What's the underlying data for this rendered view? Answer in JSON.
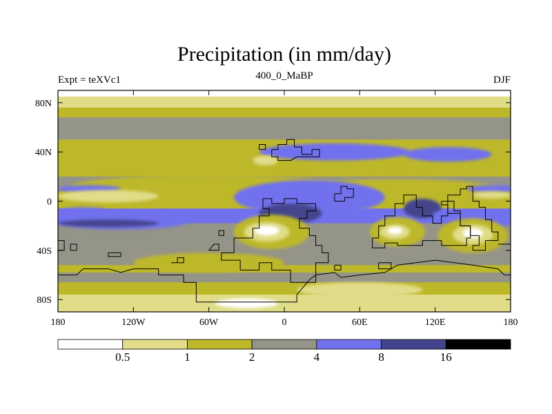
{
  "chart_data": {
    "type": "heatmap",
    "title": "Precipitation (in mm/day)",
    "left_string": "Expt = teXVc1",
    "center_string": "400_0_MaBP",
    "right_string": "DJF",
    "xlim": [
      -180,
      180
    ],
    "ylim": [
      -90,
      90
    ],
    "x_ticks": [
      {
        "value": -180,
        "label": "180"
      },
      {
        "value": -120,
        "label": "120W"
      },
      {
        "value": -60,
        "label": "60W"
      },
      {
        "value": 0,
        "label": "0"
      },
      {
        "value": 60,
        "label": "60E"
      },
      {
        "value": 120,
        "label": "120E"
      },
      {
        "value": 180,
        "label": "180"
      }
    ],
    "y_ticks": [
      {
        "value": 80,
        "label": "80N"
      },
      {
        "value": 40,
        "label": "40N"
      },
      {
        "value": 0,
        "label": "0"
      },
      {
        "value": -40,
        "label": "40S"
      },
      {
        "value": -80,
        "label": "80S"
      }
    ],
    "colorbar": {
      "levels": [
        0.5,
        1,
        2,
        4,
        8,
        16
      ],
      "labels": [
        "0.5",
        "1",
        "2",
        "4",
        "8",
        "16"
      ],
      "colors": [
        "#ffffff",
        "#e0dc88",
        "#bdb829",
        "#959488",
        "#7171ee",
        "#44448e",
        "#000000"
      ]
    },
    "zonal_bands": [
      {
        "lat_from": 90,
        "lat_to": 85,
        "class": 0
      },
      {
        "lat_from": 85,
        "lat_to": 76,
        "class": 1
      },
      {
        "lat_from": 76,
        "lat_to": 68,
        "class": 2
      },
      {
        "lat_from": 68,
        "lat_to": 50,
        "class": 3
      },
      {
        "lat_from": 50,
        "lat_to": 20,
        "class": 2
      },
      {
        "lat_from": 20,
        "lat_to": 8,
        "class": 3
      },
      {
        "lat_from": 8,
        "lat_to": -6,
        "class": 2
      },
      {
        "lat_from": -6,
        "lat_to": -18,
        "class": 4
      },
      {
        "lat_from": -18,
        "lat_to": -28,
        "class": 3
      },
      {
        "lat_from": -28,
        "lat_to": -52,
        "class": 3
      },
      {
        "lat_from": -52,
        "lat_to": -58,
        "class": 2
      },
      {
        "lat_from": -58,
        "lat_to": -66,
        "class": 3
      },
      {
        "lat_from": -66,
        "lat_to": -76,
        "class": 2
      },
      {
        "lat_from": -76,
        "lat_to": -84,
        "class": 1
      },
      {
        "lat_from": -84,
        "lat_to": -90,
        "class": 1
      }
    ],
    "regions": [
      {
        "lon": -60,
        "lat": 12,
        "rlon": 110,
        "rlat": 9,
        "class": 2
      },
      {
        "lon": 90,
        "lat": 10,
        "rlon": 80,
        "rlat": 8,
        "class": 2
      },
      {
        "lon": 40,
        "lat": 40,
        "rlon": 60,
        "rlat": 7,
        "class": 4
      },
      {
        "lon": 130,
        "lat": 38,
        "rlon": 35,
        "rlat": 6,
        "class": 4
      },
      {
        "lon": -15,
        "lat": 33,
        "rlon": 10,
        "rlat": 4,
        "class": 1
      },
      {
        "lon": -155,
        "lat": 10,
        "rlon": 25,
        "rlat": 3,
        "class": 4
      },
      {
        "lon": 165,
        "lat": 10,
        "rlon": 20,
        "rlat": 3,
        "class": 4
      },
      {
        "lon": -140,
        "lat": 4,
        "rlon": 40,
        "rlat": 5,
        "class": 1
      },
      {
        "lon": 165,
        "lat": 5,
        "rlon": 15,
        "rlat": 3,
        "class": 1
      },
      {
        "lon": 20,
        "lat": 3,
        "rlon": 60,
        "rlat": 14,
        "class": 4
      },
      {
        "lon": 5,
        "lat": -10,
        "rlon": 25,
        "rlat": 8,
        "class": 5
      },
      {
        "lon": 110,
        "lat": -6,
        "rlon": 15,
        "rlat": 8,
        "class": 5
      },
      {
        "lon": 130,
        "lat": -12,
        "rlon": 12,
        "rlat": 5,
        "class": 4
      },
      {
        "lon": -130,
        "lat": -16,
        "rlon": 55,
        "rlat": 7,
        "class": 4
      },
      {
        "lon": -140,
        "lat": -18,
        "rlon": 40,
        "rlat": 3,
        "class": 5
      },
      {
        "lon": -160,
        "lat": -8,
        "rlon": 20,
        "rlat": 3,
        "class": 4
      },
      {
        "lon": 170,
        "lat": -18,
        "rlon": 10,
        "rlat": 3,
        "class": 4
      },
      {
        "lon": -10,
        "lat": -25,
        "rlon": 30,
        "rlat": 14,
        "class": 2
      },
      {
        "lon": -14,
        "lat": -25,
        "rlon": 18,
        "rlat": 8,
        "class": 1
      },
      {
        "lon": -14,
        "lat": -24,
        "rlon": 10,
        "rlat": 4,
        "class": 0
      },
      {
        "lon": 90,
        "lat": -25,
        "rlon": 22,
        "rlat": 12,
        "class": 2
      },
      {
        "lon": 88,
        "lat": -25,
        "rlon": 12,
        "rlat": 6,
        "class": 1
      },
      {
        "lon": 88,
        "lat": -24,
        "rlon": 6,
        "rlat": 3,
        "class": 0
      },
      {
        "lon": 150,
        "lat": -28,
        "rlon": 28,
        "rlat": 14,
        "class": 2
      },
      {
        "lon": 150,
        "lat": -27,
        "rlon": 16,
        "rlat": 8,
        "class": 1
      },
      {
        "lon": 150,
        "lat": -26,
        "rlon": 8,
        "rlat": 4,
        "class": 0
      },
      {
        "lon": -60,
        "lat": -50,
        "rlon": 60,
        "rlat": 8,
        "class": 2
      },
      {
        "lon": 60,
        "lat": -72,
        "rlon": 50,
        "rlat": 6,
        "class": 1
      },
      {
        "lon": -30,
        "lat": -83,
        "rlon": 25,
        "rlat": 4,
        "class": 0
      }
    ],
    "coastlines": [
      [
        [
          -10,
          42
        ],
        [
          -5,
          42
        ],
        [
          -5,
          46
        ],
        [
          2,
          46
        ],
        [
          2,
          50
        ],
        [
          8,
          50
        ],
        [
          8,
          44
        ],
        [
          14,
          44
        ],
        [
          14,
          38
        ],
        [
          22,
          38
        ],
        [
          22,
          42
        ],
        [
          28,
          42
        ],
        [
          28,
          36
        ],
        [
          18,
          36
        ],
        [
          10,
          36
        ],
        [
          5,
          33
        ],
        [
          -5,
          33
        ],
        [
          -5,
          36
        ],
        [
          -10,
          36
        ],
        [
          -10,
          42
        ]
      ],
      [
        [
          -17,
          2
        ],
        [
          -17,
          -6
        ],
        [
          -12,
          -6
        ],
        [
          -12,
          -12
        ],
        [
          -20,
          -12
        ],
        [
          -20,
          -22
        ],
        [
          -25,
          -22
        ],
        [
          -25,
          -30
        ],
        [
          -40,
          -30
        ],
        [
          -40,
          -42
        ],
        [
          -50,
          -42
        ],
        [
          -50,
          -48
        ],
        [
          -35,
          -48
        ],
        [
          -35,
          -56
        ],
        [
          -20,
          -56
        ],
        [
          -20,
          -50
        ],
        [
          -10,
          -50
        ],
        [
          -10,
          -56
        ],
        [
          5,
          -56
        ],
        [
          5,
          -66
        ],
        [
          25,
          -66
        ],
        [
          25,
          -50
        ],
        [
          35,
          -50
        ],
        [
          35,
          -42
        ],
        [
          30,
          -42
        ],
        [
          30,
          -36
        ],
        [
          25,
          -36
        ],
        [
          25,
          -28
        ],
        [
          20,
          -28
        ],
        [
          20,
          -22
        ],
        [
          12,
          -22
        ],
        [
          12,
          -14
        ],
        [
          18,
          -14
        ],
        [
          18,
          -8
        ],
        [
          25,
          -8
        ],
        [
          25,
          -2
        ],
        [
          15,
          -2
        ],
        [
          10,
          -2
        ],
        [
          10,
          2
        ],
        [
          0,
          2
        ],
        [
          0,
          -2
        ],
        [
          -10,
          -2
        ],
        [
          -10,
          2
        ],
        [
          -17,
          2
        ]
      ],
      [
        [
          -120,
          -55
        ],
        [
          -100,
          -55
        ],
        [
          -100,
          -60
        ],
        [
          -80,
          -60
        ],
        [
          -80,
          -66
        ],
        [
          -70,
          -66
        ],
        [
          -70,
          -82
        ],
        [
          -20,
          -82
        ],
        [
          -20,
          -82
        ],
        [
          10,
          -82
        ],
        [
          10,
          -76
        ],
        [
          15,
          -70
        ],
        [
          20,
          -64
        ],
        [
          25,
          -60
        ],
        [
          40,
          -58
        ],
        [
          45,
          -62
        ],
        [
          60,
          -60
        ],
        [
          80,
          -58
        ],
        [
          90,
          -52
        ],
        [
          120,
          -48
        ],
        [
          150,
          -52
        ],
        [
          170,
          -55
        ],
        [
          175,
          -60
        ],
        [
          180,
          -60
        ]
      ],
      [
        [
          -180,
          -60
        ],
        [
          -165,
          -60
        ],
        [
          -160,
          -55
        ],
        [
          -140,
          -55
        ],
        [
          -130,
          -58
        ],
        [
          -120,
          -55
        ]
      ],
      [
        [
          40,
          6
        ],
        [
          45,
          6
        ],
        [
          45,
          12
        ],
        [
          50,
          12
        ],
        [
          50,
          10
        ],
        [
          55,
          10
        ],
        [
          55,
          3
        ],
        [
          48,
          3
        ],
        [
          48,
          0
        ],
        [
          40,
          0
        ],
        [
          40,
          6
        ]
      ],
      [
        [
          70,
          -35
        ],
        [
          70,
          -30
        ],
        [
          75,
          -30
        ],
        [
          75,
          -20
        ],
        [
          80,
          -20
        ],
        [
          80,
          -12
        ],
        [
          88,
          -12
        ],
        [
          88,
          -2
        ],
        [
          95,
          -2
        ],
        [
          95,
          5
        ],
        [
          105,
          5
        ],
        [
          105,
          -5
        ],
        [
          110,
          -5
        ],
        [
          110,
          -12
        ],
        [
          118,
          -12
        ],
        [
          118,
          -18
        ],
        [
          125,
          -18
        ],
        [
          125,
          -12
        ],
        [
          130,
          -12
        ],
        [
          130,
          0
        ],
        [
          135,
          0
        ],
        [
          135,
          -8
        ],
        [
          140,
          -8
        ],
        [
          140,
          -20
        ],
        [
          148,
          -20
        ],
        [
          148,
          -30
        ],
        [
          145,
          -30
        ],
        [
          145,
          -36
        ],
        [
          125,
          -36
        ],
        [
          125,
          -32
        ],
        [
          110,
          -32
        ],
        [
          110,
          -36
        ],
        [
          90,
          -36
        ],
        [
          90,
          -34
        ],
        [
          80,
          -34
        ],
        [
          80,
          -38
        ],
        [
          70,
          -38
        ],
        [
          70,
          -35
        ]
      ],
      [
        [
          125,
          0
        ],
        [
          130,
          0
        ],
        [
          130,
          5
        ],
        [
          140,
          5
        ],
        [
          140,
          10
        ],
        [
          145,
          10
        ],
        [
          145,
          12
        ],
        [
          150,
          12
        ],
        [
          150,
          0
        ],
        [
          155,
          0
        ],
        [
          155,
          -5
        ],
        [
          160,
          -5
        ],
        [
          160,
          -15
        ],
        [
          165,
          -15
        ],
        [
          165,
          -25
        ],
        [
          170,
          -25
        ],
        [
          170,
          -32
        ],
        [
          160,
          -32
        ],
        [
          160,
          -40
        ],
        [
          150,
          -40
        ],
        [
          150,
          -36
        ],
        [
          155,
          -36
        ],
        [
          155,
          -28
        ],
        [
          148,
          -28
        ],
        [
          148,
          -20
        ],
        [
          140,
          -20
        ],
        [
          140,
          -10
        ],
        [
          130,
          -10
        ],
        [
          130,
          -3
        ],
        [
          125,
          -3
        ],
        [
          125,
          0
        ]
      ],
      [
        [
          -170,
          -35
        ],
        [
          -165,
          -35
        ],
        [
          -165,
          -40
        ],
        [
          -170,
          -40
        ],
        [
          -170,
          -35
        ]
      ],
      [
        [
          -140,
          -42
        ],
        [
          -130,
          -42
        ],
        [
          -130,
          -45
        ],
        [
          -140,
          -45
        ],
        [
          -140,
          -42
        ]
      ],
      [
        [
          -90,
          -50
        ],
        [
          -85,
          -50
        ],
        [
          -85,
          -46
        ],
        [
          -80,
          -46
        ],
        [
          -80,
          -50
        ],
        [
          -90,
          -50
        ]
      ],
      [
        [
          -52,
          -28
        ],
        [
          -48,
          -28
        ],
        [
          -48,
          -24
        ],
        [
          -52,
          -24
        ],
        [
          -52,
          -28
        ]
      ],
      [
        [
          -60,
          -40
        ],
        [
          -52,
          -40
        ],
        [
          -52,
          -35
        ],
        [
          -56,
          -35
        ],
        [
          -60,
          -40
        ]
      ],
      [
        [
          40,
          -52
        ],
        [
          45,
          -52
        ],
        [
          45,
          -56
        ],
        [
          40,
          -56
        ],
        [
          40,
          -52
        ]
      ],
      [
        [
          75,
          -50
        ],
        [
          85,
          -50
        ],
        [
          85,
          -55
        ],
        [
          75,
          -55
        ],
        [
          75,
          -50
        ]
      ],
      [
        [
          -180,
          -32
        ],
        [
          -175,
          -32
        ],
        [
          -175,
          -40
        ],
        [
          -180,
          -40
        ]
      ],
      [
        [
          170,
          -35
        ],
        [
          180,
          -35
        ]
      ],
      [
        [
          -20,
          42
        ],
        [
          -15,
          42
        ],
        [
          -15,
          46
        ],
        [
          -20,
          46
        ],
        [
          -20,
          42
        ]
      ]
    ]
  }
}
